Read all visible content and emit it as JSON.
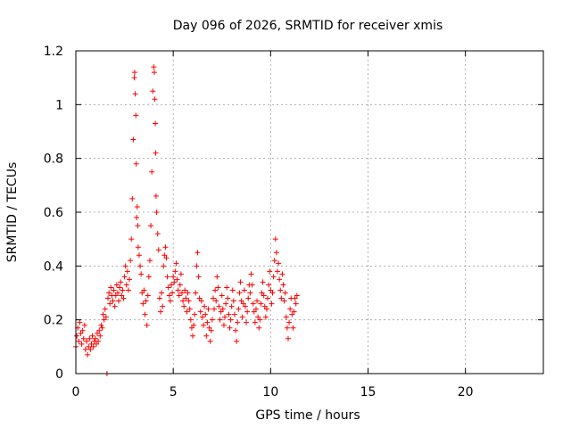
{
  "chart_data": {
    "type": "scatter",
    "title": "Day 096 of 2026, SRMTID for receiver xmis",
    "xlabel": "GPS time / hours",
    "ylabel": "SRMTID / TECUs",
    "xlim": [
      0,
      24
    ],
    "ylim": [
      0,
      1.2
    ],
    "x_ticks": [
      0,
      5,
      10,
      15,
      20
    ],
    "x_tick_labels": [
      "0",
      "5",
      "10",
      "15",
      "20"
    ],
    "y_ticks": [
      0,
      0.2,
      0.4,
      0.6,
      0.8,
      1,
      1.2
    ],
    "y_tick_labels": [
      "0",
      "0.2",
      "0.4",
      "0.6",
      "0.8",
      "1",
      "1.2"
    ],
    "grid": true,
    "marker": "+",
    "series": [
      {
        "name": "SRMTID",
        "color": "#ff0000",
        "points": [
          [
            0.0,
            0.1
          ],
          [
            0.05,
            0.14
          ],
          [
            0.1,
            0.17
          ],
          [
            0.15,
            0.12
          ],
          [
            0.2,
            0.19
          ],
          [
            0.25,
            0.15
          ],
          [
            0.3,
            0.11
          ],
          [
            0.35,
            0.16
          ],
          [
            0.4,
            0.13
          ],
          [
            0.45,
            0.18
          ],
          [
            0.5,
            0.09
          ],
          [
            0.55,
            0.12
          ],
          [
            0.6,
            0.07
          ],
          [
            0.65,
            0.1
          ],
          [
            0.7,
            0.13
          ],
          [
            0.75,
            0.09
          ],
          [
            0.8,
            0.11
          ],
          [
            0.85,
            0.14
          ],
          [
            0.9,
            0.1
          ],
          [
            0.95,
            0.12
          ],
          [
            1.0,
            0.13
          ],
          [
            1.05,
            0.11
          ],
          [
            1.1,
            0.15
          ],
          [
            1.15,
            0.12
          ],
          [
            1.2,
            0.16
          ],
          [
            1.25,
            0.14
          ],
          [
            1.3,
            0.18
          ],
          [
            1.35,
            0.17
          ],
          [
            1.4,
            0.22
          ],
          [
            1.45,
            0.2
          ],
          [
            1.5,
            0.24
          ],
          [
            1.55,
            0.21
          ],
          [
            1.6,
            0.0
          ],
          [
            1.65,
            0.28
          ],
          [
            1.7,
            0.3
          ],
          [
            1.75,
            0.26
          ],
          [
            1.8,
            0.32
          ],
          [
            1.85,
            0.29
          ],
          [
            1.9,
            0.27
          ],
          [
            1.95,
            0.31
          ],
          [
            2.0,
            0.25
          ],
          [
            2.05,
            0.29
          ],
          [
            2.1,
            0.33
          ],
          [
            2.15,
            0.3
          ],
          [
            2.2,
            0.27
          ],
          [
            2.25,
            0.32
          ],
          [
            2.3,
            0.34
          ],
          [
            2.35,
            0.29
          ],
          [
            2.4,
            0.31
          ],
          [
            2.45,
            0.28
          ],
          [
            2.5,
            0.36
          ],
          [
            2.55,
            0.4
          ],
          [
            2.6,
            0.33
          ],
          [
            2.65,
            0.38
          ],
          [
            2.7,
            0.31
          ],
          [
            2.75,
            0.35
          ],
          [
            2.8,
            0.42
          ],
          [
            2.85,
            0.5
          ],
          [
            2.9,
            0.65
          ],
          [
            2.95,
            0.87
          ],
          [
            3.0,
            1.1
          ],
          [
            3.02,
            1.12
          ],
          [
            3.05,
            1.04
          ],
          [
            3.08,
            0.96
          ],
          [
            3.1,
            0.78
          ],
          [
            3.12,
            0.58
          ],
          [
            3.15,
            0.62
          ],
          [
            3.18,
            0.55
          ],
          [
            3.2,
            0.47
          ],
          [
            3.25,
            0.44
          ],
          [
            3.3,
            0.4
          ],
          [
            3.35,
            0.37
          ],
          [
            3.4,
            0.3
          ],
          [
            3.45,
            0.26
          ],
          [
            3.5,
            0.31
          ],
          [
            3.55,
            0.22
          ],
          [
            3.6,
            0.27
          ],
          [
            3.65,
            0.18
          ],
          [
            3.7,
            0.29
          ],
          [
            3.75,
            0.36
          ],
          [
            3.8,
            0.42
          ],
          [
            3.85,
            0.55
          ],
          [
            3.9,
            0.75
          ],
          [
            3.95,
            1.05
          ],
          [
            4.0,
            1.14
          ],
          [
            4.03,
            1.12
          ],
          [
            4.05,
            1.02
          ],
          [
            4.08,
            0.93
          ],
          [
            4.1,
            0.82
          ],
          [
            4.12,
            0.66
          ],
          [
            4.15,
            0.6
          ],
          [
            4.2,
            0.52
          ],
          [
            4.25,
            0.46
          ],
          [
            4.3,
            0.28
          ],
          [
            4.35,
            0.23
          ],
          [
            4.4,
            0.3
          ],
          [
            4.45,
            0.25
          ],
          [
            4.5,
            0.4
          ],
          [
            4.55,
            0.44
          ],
          [
            4.6,
            0.47
          ],
          [
            4.65,
            0.43
          ],
          [
            4.7,
            0.36
          ],
          [
            4.75,
            0.32
          ],
          [
            4.8,
            0.29
          ],
          [
            4.85,
            0.27
          ],
          [
            4.9,
            0.33
          ],
          [
            4.95,
            0.3
          ],
          [
            5.0,
            0.36
          ],
          [
            5.05,
            0.34
          ],
          [
            5.1,
            0.38
          ],
          [
            5.15,
            0.41
          ],
          [
            5.2,
            0.35
          ],
          [
            5.25,
            0.31
          ],
          [
            5.3,
            0.29
          ],
          [
            5.35,
            0.33
          ],
          [
            5.4,
            0.37
          ],
          [
            5.45,
            0.3
          ],
          [
            5.5,
            0.27
          ],
          [
            5.55,
            0.25
          ],
          [
            5.6,
            0.31
          ],
          [
            5.65,
            0.28
          ],
          [
            5.7,
            0.23
          ],
          [
            5.75,
            0.3
          ],
          [
            5.8,
            0.27
          ],
          [
            5.85,
            0.24
          ],
          [
            5.9,
            0.2
          ],
          [
            5.95,
            0.17
          ],
          [
            6.0,
            0.14
          ],
          [
            6.05,
            0.18
          ],
          [
            6.1,
            0.22
          ],
          [
            6.15,
            0.3
          ],
          [
            6.2,
            0.4
          ],
          [
            6.25,
            0.45
          ],
          [
            6.3,
            0.36
          ],
          [
            6.35,
            0.28
          ],
          [
            6.4,
            0.23
          ],
          [
            6.45,
            0.27
          ],
          [
            6.5,
            0.21
          ],
          [
            6.55,
            0.18
          ],
          [
            6.6,
            0.25
          ],
          [
            6.65,
            0.22
          ],
          [
            6.7,
            0.14
          ],
          [
            6.75,
            0.19
          ],
          [
            6.8,
            0.24
          ],
          [
            6.85,
            0.17
          ],
          [
            6.9,
            0.12
          ],
          [
            6.95,
            0.16
          ],
          [
            7.0,
            0.2
          ],
          [
            7.05,
            0.28
          ],
          [
            7.1,
            0.24
          ],
          [
            7.15,
            0.31
          ],
          [
            7.2,
            0.27
          ],
          [
            7.25,
            0.36
          ],
          [
            7.3,
            0.32
          ],
          [
            7.35,
            0.25
          ],
          [
            7.4,
            0.2
          ],
          [
            7.45,
            0.23
          ],
          [
            7.5,
            0.29
          ],
          [
            7.55,
            0.24
          ],
          [
            7.6,
            0.18
          ],
          [
            7.65,
            0.21
          ],
          [
            7.7,
            0.26
          ],
          [
            7.75,
            0.32
          ],
          [
            7.8,
            0.28
          ],
          [
            7.85,
            0.22
          ],
          [
            7.9,
            0.17
          ],
          [
            7.95,
            0.2
          ],
          [
            8.0,
            0.25
          ],
          [
            8.05,
            0.31
          ],
          [
            8.1,
            0.27
          ],
          [
            8.15,
            0.22
          ],
          [
            8.2,
            0.16
          ],
          [
            8.25,
            0.12
          ],
          [
            8.3,
            0.19
          ],
          [
            8.35,
            0.24
          ],
          [
            8.4,
            0.3
          ],
          [
            8.45,
            0.34
          ],
          [
            8.5,
            0.27
          ],
          [
            8.55,
            0.21
          ],
          [
            8.6,
            0.26
          ],
          [
            8.65,
            0.31
          ],
          [
            8.7,
            0.25
          ],
          [
            8.75,
            0.19
          ],
          [
            8.8,
            0.23
          ],
          [
            8.85,
            0.28
          ],
          [
            8.9,
            0.33
          ],
          [
            8.95,
            0.3
          ],
          [
            9.0,
            0.37
          ],
          [
            9.05,
            0.33
          ],
          [
            9.1,
            0.26
          ],
          [
            9.15,
            0.23
          ],
          [
            9.2,
            0.19
          ],
          [
            9.25,
            0.24
          ],
          [
            9.3,
            0.27
          ],
          [
            9.35,
            0.21
          ],
          [
            9.4,
            0.17
          ],
          [
            9.45,
            0.2
          ],
          [
            9.5,
            0.26
          ],
          [
            9.55,
            0.3
          ],
          [
            9.6,
            0.34
          ],
          [
            9.65,
            0.29
          ],
          [
            9.7,
            0.25
          ],
          [
            9.75,
            0.21
          ],
          [
            9.8,
            0.24
          ],
          [
            9.85,
            0.28
          ],
          [
            9.9,
            0.33
          ],
          [
            9.95,
            0.38
          ],
          [
            10.0,
            0.31
          ],
          [
            10.05,
            0.26
          ],
          [
            10.1,
            0.3
          ],
          [
            10.15,
            0.36
          ],
          [
            10.2,
            0.42
          ],
          [
            10.25,
            0.5
          ],
          [
            10.3,
            0.45
          ],
          [
            10.35,
            0.38
          ],
          [
            10.4,
            0.41
          ],
          [
            10.45,
            0.35
          ],
          [
            10.5,
            0.31
          ],
          [
            10.55,
            0.28
          ],
          [
            10.6,
            0.37
          ],
          [
            10.65,
            0.33
          ],
          [
            10.7,
            0.27
          ],
          [
            10.75,
            0.3
          ],
          [
            10.8,
            0.21
          ],
          [
            10.85,
            0.17
          ],
          [
            10.9,
            0.13
          ],
          [
            10.95,
            0.19
          ],
          [
            11.0,
            0.24
          ],
          [
            11.05,
            0.28
          ],
          [
            11.1,
            0.22
          ],
          [
            11.15,
            0.17
          ],
          [
            11.2,
            0.23
          ],
          [
            11.25,
            0.28
          ],
          [
            11.3,
            0.26
          ],
          [
            11.35,
            0.29
          ]
        ]
      }
    ]
  }
}
